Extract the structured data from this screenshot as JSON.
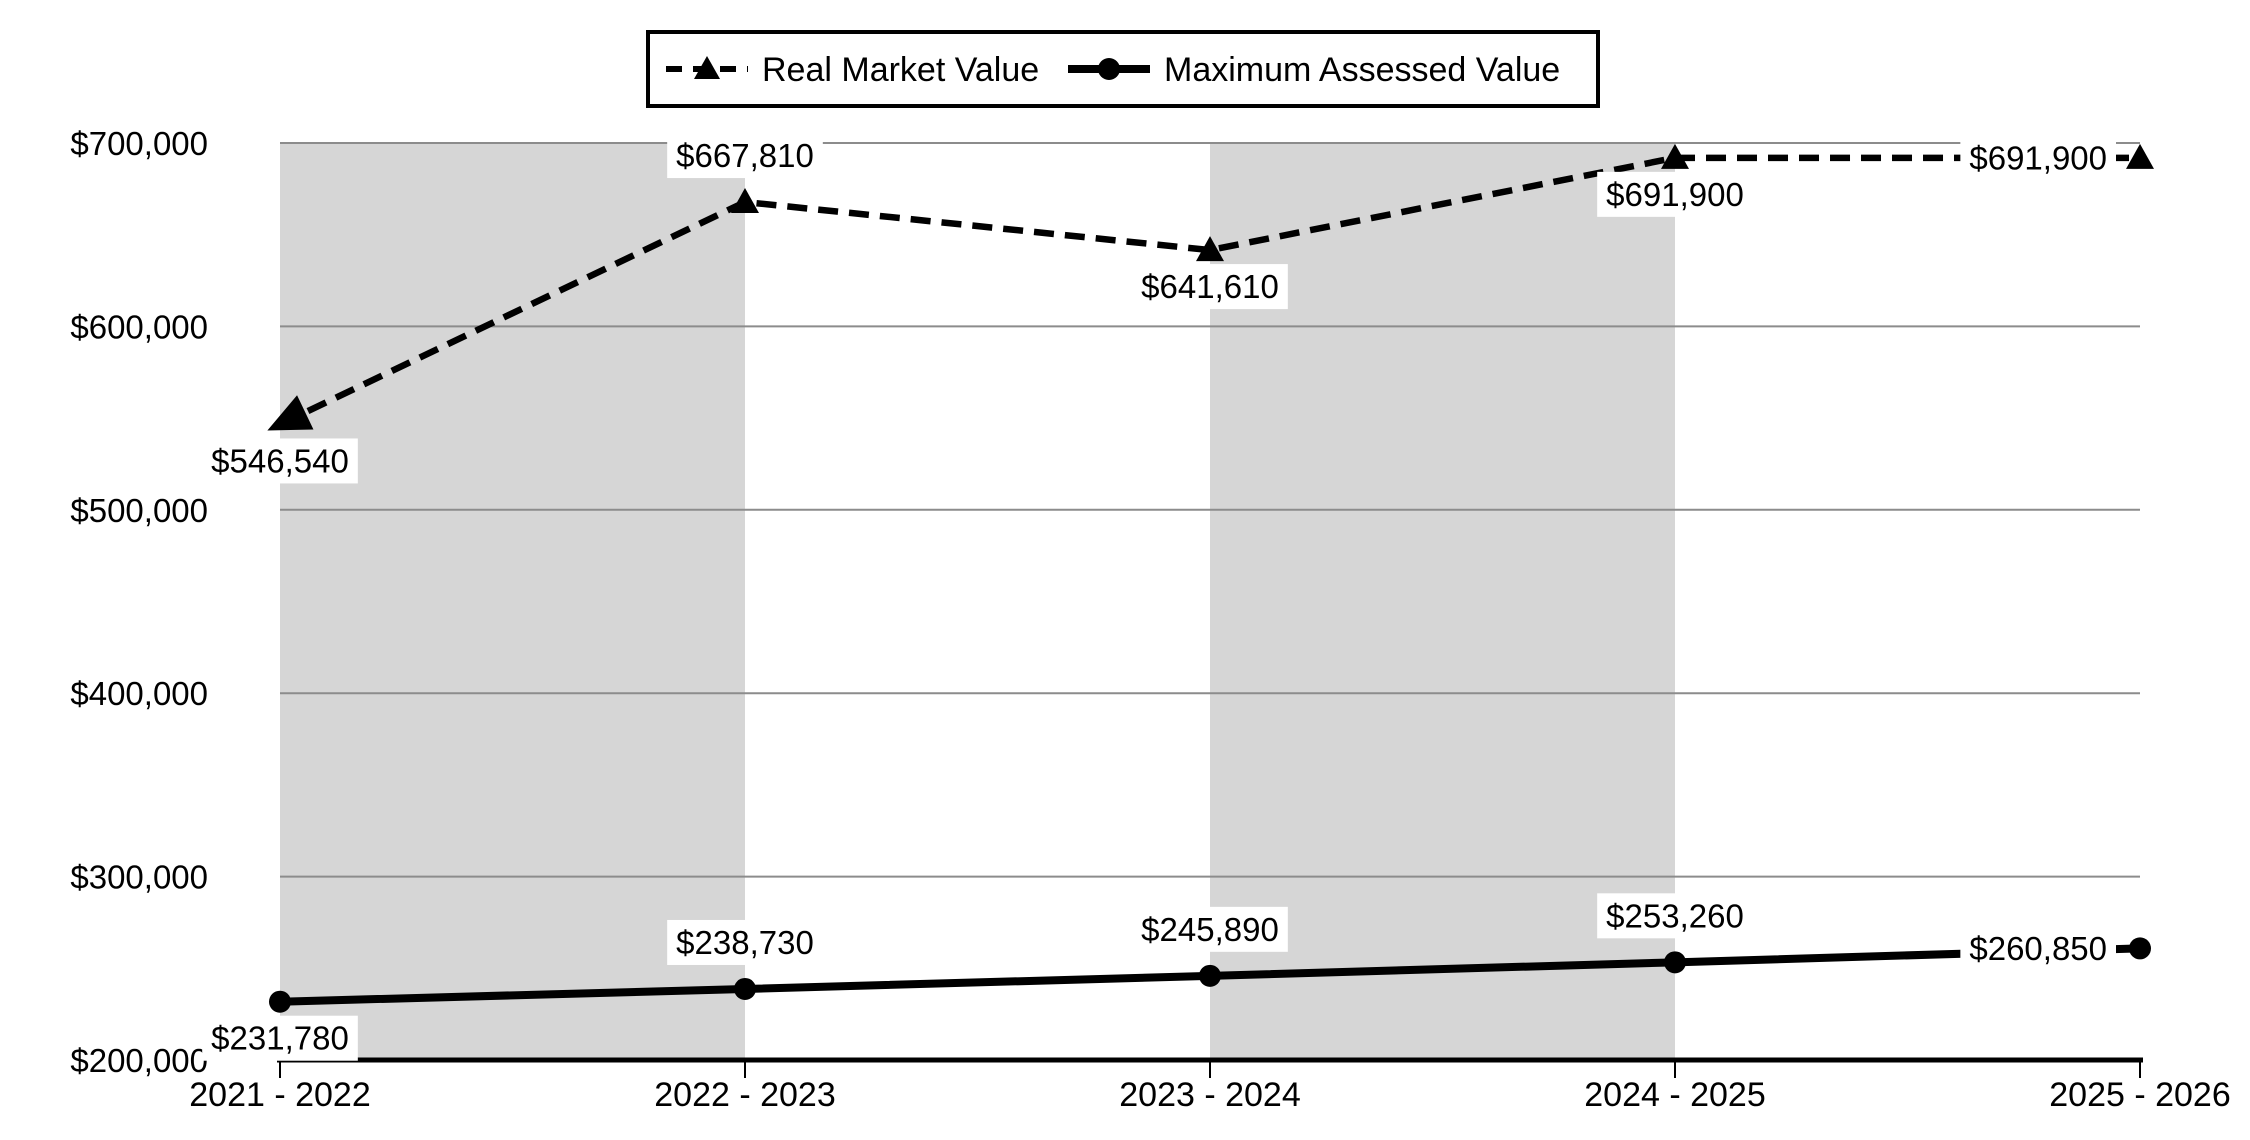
{
  "chart_data": {
    "type": "line",
    "title": "",
    "categories": [
      "2021 - 2022",
      "2022 - 2023",
      "2023 - 2024",
      "2024 - 2025",
      "2025 - 2026"
    ],
    "series": [
      {
        "name": "Real Market Value",
        "values": [
          546540,
          667810,
          641610,
          691900,
          691900
        ],
        "data_labels": [
          "$546,540",
          "$667,810",
          "$641,610",
          "$691,900",
          "$691,900"
        ],
        "label_placements": [
          "below",
          "above",
          "below",
          "below",
          "left"
        ],
        "line_style": "dashed",
        "marker": "triangle",
        "start_marker": "arrowhead",
        "color": "#000000"
      },
      {
        "name": "Maximum Assessed Value",
        "values": [
          231780,
          238730,
          245890,
          253260,
          260850
        ],
        "data_labels": [
          "$231,780",
          "$238,730",
          "$245,890",
          "$253,260",
          "$260,850"
        ],
        "label_placements": [
          "below",
          "above",
          "above",
          "above",
          "left"
        ],
        "line_style": "solid",
        "marker": "circle",
        "color": "#000000"
      }
    ],
    "y_axis": {
      "min": 200000,
      "max": 700000,
      "step": 100000,
      "tick_labels": [
        "$200,000",
        "$300,000",
        "$400,000",
        "$500,000",
        "$600,000",
        "$700,000"
      ]
    },
    "x_axis": {
      "tick_labels": [
        "2021 - 2022",
        "2022 - 2023",
        "2023 - 2024",
        "2024 - 2025",
        "2025 - 2026"
      ]
    },
    "legend": {
      "position": "top",
      "border": true,
      "entries": [
        "Real Market Value",
        "Maximum Assessed Value"
      ]
    },
    "grid": true,
    "background_bands": {
      "intervals": [
        [
          0,
          1
        ],
        [
          2,
          3
        ]
      ]
    },
    "colors": {
      "band": "#d6d6d6",
      "gridline": "#8c8c8c",
      "axis": "#000000",
      "series": "#000000",
      "label_background": "#ffffff",
      "legend_border": "#000000",
      "text": "#000000"
    }
  }
}
